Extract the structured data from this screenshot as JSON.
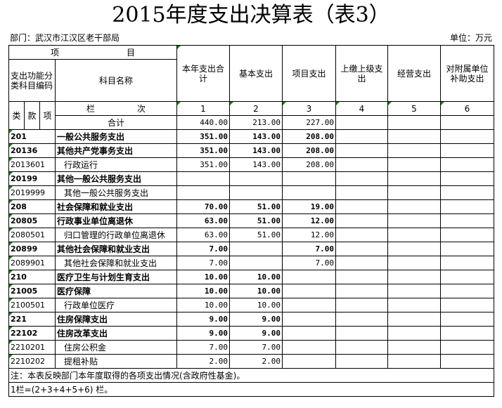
{
  "title": "2015年度支出决算表（表3）",
  "department": "部门：武汉市江汉区老干部局",
  "unit": "单位：万元",
  "header": {
    "item": "项　　　　　　　　目",
    "code": "支出功能分类科目编码",
    "name": "科目名称",
    "lei": "类",
    "kuan": "款",
    "xiang": "项",
    "lanci": "栏　　　　　次",
    "cols": [
      "本年支出合计",
      "基本支出",
      "项目支出",
      "上缴上级支出",
      "经营支出",
      "对附属单位补助支出"
    ],
    "nums": [
      "1",
      "2",
      "3",
      "4",
      "5",
      "6"
    ]
  },
  "total": {
    "label": "合计",
    "values": [
      "440.00",
      "213.00",
      "227.00",
      "",
      "",
      ""
    ]
  },
  "rows": [
    {
      "code": "201",
      "name": "一般公共服务支出",
      "bold": true,
      "values": [
        "351.00",
        "143.00",
        "208.00"
      ]
    },
    {
      "code": "20136",
      "name": "其他共产党事务支出",
      "bold": true,
      "values": [
        "351.00",
        "143.00",
        "208.00"
      ]
    },
    {
      "code": "2013601",
      "name": "行政运行",
      "bold": false,
      "values": [
        "351.00",
        "143.00",
        "208.00"
      ]
    },
    {
      "code": "20199",
      "name": "其他一般公共服务支出",
      "bold": true,
      "values": [
        "",
        "",
        ""
      ]
    },
    {
      "code": "2019999",
      "name": "其他一般公共服务支出",
      "bold": false,
      "values": [
        "",
        "",
        ""
      ]
    },
    {
      "code": "208",
      "name": "社会保障和就业支出",
      "bold": true,
      "values": [
        "70.00",
        "51.00",
        "19.00"
      ]
    },
    {
      "code": "20805",
      "name": "行政事业单位离退休",
      "bold": true,
      "values": [
        "63.00",
        "51.00",
        "12.00"
      ]
    },
    {
      "code": "2080501",
      "name": "归口管理的行政单位离退休",
      "bold": false,
      "values": [
        "63.00",
        "51.00",
        "12.00"
      ]
    },
    {
      "code": "20899",
      "name": "其他社会保障和就业支出",
      "bold": true,
      "values": [
        "7.00",
        "",
        "7.00"
      ]
    },
    {
      "code": "2089901",
      "name": "其他社会保障和就业支出",
      "bold": false,
      "values": [
        "7.00",
        "",
        "7.00"
      ]
    },
    {
      "code": "210",
      "name": "医疗卫生与计划生育支出",
      "bold": true,
      "values": [
        "10.00",
        "10.00",
        ""
      ]
    },
    {
      "code": "21005",
      "name": "医疗保障",
      "bold": true,
      "values": [
        "10.00",
        "10.00",
        ""
      ]
    },
    {
      "code": "2100501",
      "name": "行政单位医疗",
      "bold": false,
      "values": [
        "10.00",
        "10.00",
        ""
      ]
    },
    {
      "code": "221",
      "name": "住房保障支出",
      "bold": true,
      "values": [
        "9.00",
        "9.00",
        ""
      ]
    },
    {
      "code": "22102",
      "name": "住房改革支出",
      "bold": true,
      "values": [
        "9.00",
        "9.00",
        ""
      ]
    },
    {
      "code": "2210201",
      "name": "住房公积金",
      "bold": false,
      "values": [
        "7.00",
        "7.00",
        ""
      ]
    },
    {
      "code": "2210202",
      "name": "提租补贴",
      "bold": false,
      "values": [
        "2.00",
        "2.00",
        ""
      ]
    }
  ],
  "notes": [
    "注：本表反映部门本年度取得的各项支出情况(含政府性基金)。",
    "1栏=(2+3+4+5+6) 栏。"
  ]
}
